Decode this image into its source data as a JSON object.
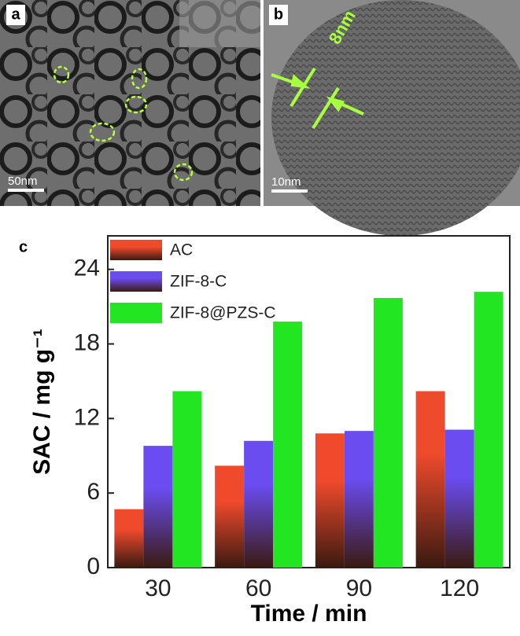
{
  "panels": [
    {
      "label": "a",
      "scale_bar": "50nm"
    },
    {
      "label": "b",
      "scale_bar": "10nm",
      "annotation": "8nm"
    }
  ],
  "chart_data": {
    "type": "bar",
    "panel_label": "c",
    "x_label": "Time / min",
    "y_label": "SAC / mg g⁻¹",
    "categories": [
      "30",
      "60",
      "90",
      "120"
    ],
    "series": [
      {
        "name": "AC",
        "color": "#f04a2c",
        "values": [
          4.7,
          8.2,
          10.8,
          14.2
        ]
      },
      {
        "name": "ZIF-8-C",
        "color": "#6a4cf0",
        "values": [
          9.8,
          10.2,
          11.0,
          11.1
        ]
      },
      {
        "name": "ZIF-8@PZS-C",
        "color": "#22e622",
        "values": [
          14.2,
          19.8,
          21.7,
          22.2
        ]
      }
    ],
    "ylim": [
      0,
      26.7
    ],
    "yticks": [
      0,
      6,
      12,
      18,
      24
    ],
    "legend": "upper left"
  }
}
